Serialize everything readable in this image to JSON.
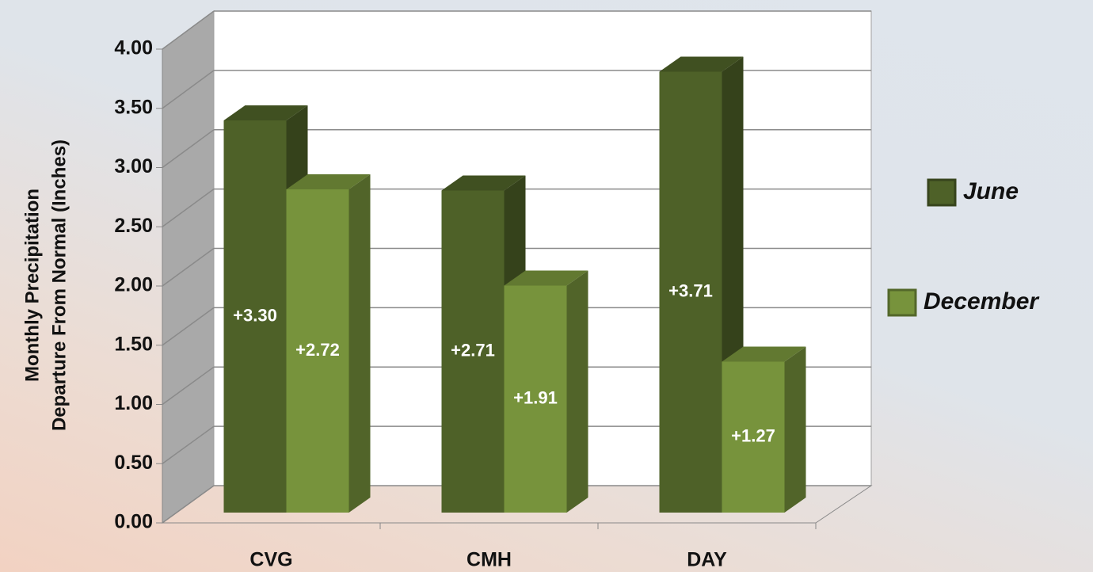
{
  "chart_data": {
    "type": "bar3d",
    "y_label": [
      "Monthly Precipitation",
      "Departure From Normal (Inches)"
    ],
    "categories": [
      "CVG",
      "CMH",
      "DAY"
    ],
    "series": [
      {
        "name": "June",
        "color": "#4e6128",
        "values": [
          3.3,
          2.71,
          3.71
        ],
        "value_labels": [
          "+3.30",
          "+2.71",
          "+3.71"
        ]
      },
      {
        "name": "December",
        "color": "#77933c",
        "values": [
          2.72,
          1.91,
          1.27
        ],
        "value_labels": [
          "+2.72",
          "+1.91",
          "+1.27"
        ]
      }
    ],
    "ylim": [
      0,
      4
    ],
    "yticks": [
      {
        "value": 0,
        "label": "0.00"
      },
      {
        "value": 0.5,
        "label": "0.50"
      },
      {
        "value": 1,
        "label": "1.00"
      },
      {
        "value": 1.5,
        "label": "1.50"
      },
      {
        "value": 2,
        "label": "2.00"
      },
      {
        "value": 2.5,
        "label": "2.50"
      },
      {
        "value": 3,
        "label": "3.00"
      },
      {
        "value": 3.5,
        "label": "3.50"
      },
      {
        "value": 4,
        "label": "4.00"
      }
    ],
    "grid": true,
    "legend": "right"
  }
}
